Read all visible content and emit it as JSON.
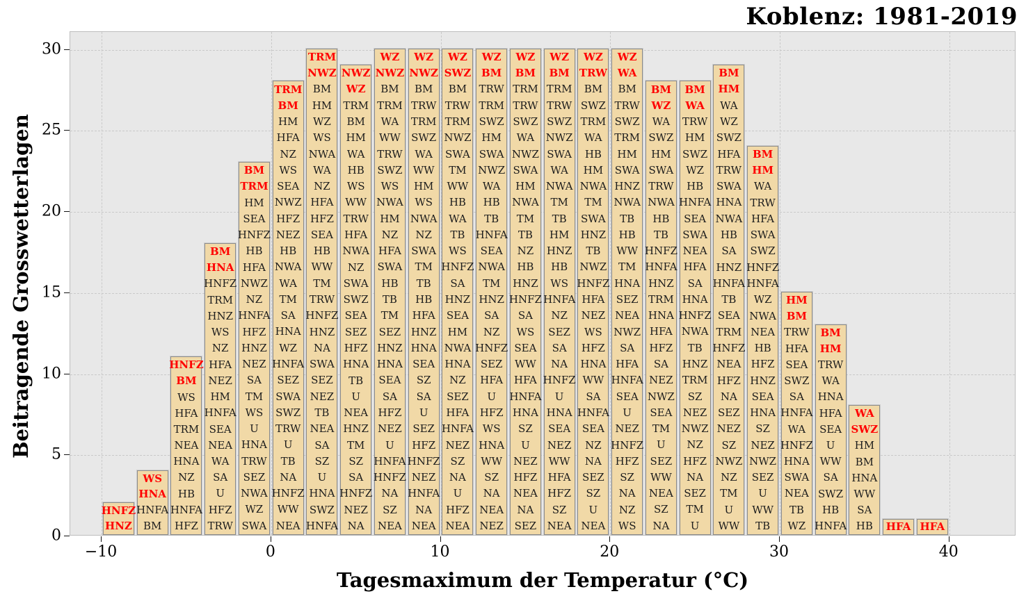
{
  "chart_data": {
    "type": "bar",
    "subtype": "stacked-labeled-cells",
    "title": "Koblenz: 1981-2019",
    "xlabel": "Tagesmaximum der Temperatur (°C)",
    "ylabel": "Beitragende Grosswetterlagen",
    "x_tick_values": [
      -10,
      0,
      10,
      20,
      30,
      40
    ],
    "x_tick_labels": [
      "−10",
      "0",
      "10",
      "20",
      "30",
      "40"
    ],
    "y_ticks": [
      0,
      5,
      10,
      15,
      20,
      25,
      30
    ],
    "xlim": [
      -11.85,
      43.95
    ],
    "ylim": [
      0,
      31.1
    ],
    "grid": "dashed-both-axes",
    "legend": null,
    "bar_width_degC": 1.85,
    "colors": {
      "bar_fill": "#f1d9a7",
      "bar_border": "#8b8b8b",
      "label_text": "#1c1c1c",
      "highlight_text": "#ff0000",
      "plot_background": "#e8e8e8",
      "gridline": "#c9c9c9"
    },
    "bars": [
      {
        "temp": -9,
        "count": 2,
        "red": 2,
        "labels": [
          "HNFZ",
          "HNZ"
        ]
      },
      {
        "temp": -7,
        "count": 4,
        "red": 2,
        "labels": [
          "WS",
          "HNA",
          "HNFA",
          "BM"
        ]
      },
      {
        "temp": -5,
        "count": 11,
        "red": 2,
        "labels": [
          "HNFZ",
          "BM",
          "WS",
          "HFA",
          "TRM",
          "NEA",
          "HNA",
          "NZ",
          "HB",
          "HNFA",
          "HFZ"
        ]
      },
      {
        "temp": -3,
        "count": 18,
        "red": 2,
        "labels": [
          "BM",
          "HNA",
          "HNFZ",
          "TRM",
          "HNZ",
          "WS",
          "NZ",
          "HFA",
          "NEZ",
          "HM",
          "HNFA",
          "SEA",
          "NEA",
          "WA",
          "SA",
          "U",
          "HFZ",
          "TRW"
        ]
      },
      {
        "temp": -1,
        "count": 23,
        "red": 2,
        "labels": [
          "BM",
          "TRM",
          "HM",
          "SEA",
          "HNFZ",
          "HB",
          "HFA",
          "NWZ",
          "NZ",
          "HNFA",
          "HFZ",
          "HNZ",
          "NEZ",
          "SA",
          "TM",
          "WS",
          "U",
          "HNA",
          "TRW",
          "SEZ",
          "NWA",
          "WZ",
          "SWA"
        ]
      },
      {
        "temp": 1,
        "count": 28,
        "red": 2,
        "labels": [
          "TRM",
          "BM",
          "HM",
          "HFA",
          "NZ",
          "WS",
          "SEA",
          "NWZ",
          "HFZ",
          "NEZ",
          "HB",
          "NWA",
          "WA",
          "TM",
          "SA",
          "HNA",
          "WZ",
          "HNFA",
          "SEZ",
          "SWA",
          "SWZ",
          "TRW",
          "U",
          "TB",
          "NA",
          "HNFZ",
          "WW",
          "NEA"
        ]
      },
      {
        "temp": 3,
        "count": 30,
        "red": 2,
        "labels": [
          "TRM",
          "NWZ",
          "BM",
          "HM",
          "WZ",
          "WS",
          "NWA",
          "WA",
          "NZ",
          "HFA",
          "HFZ",
          "SEA",
          "HB",
          "WW",
          "TM",
          "TRW",
          "HNFZ",
          "HNZ",
          "NA",
          "SWA",
          "SEZ",
          "NEZ",
          "TB",
          "NEA",
          "SA",
          "SZ",
          "U",
          "HNA",
          "SWZ",
          "HNFA"
        ]
      },
      {
        "temp": 5,
        "count": 29,
        "red": 2,
        "labels": [
          "NWZ",
          "WZ",
          "TRM",
          "BM",
          "HM",
          "WA",
          "HB",
          "WS",
          "WW",
          "TRW",
          "HFA",
          "NWA",
          "NZ",
          "SWA",
          "SWZ",
          "SEA",
          "SEZ",
          "HFZ",
          "HNA",
          "TB",
          "U",
          "NEA",
          "HNZ",
          "TM",
          "SZ",
          "SA",
          "HNFZ",
          "NEZ",
          "NA"
        ]
      },
      {
        "temp": 7,
        "count": 30,
        "red": 2,
        "labels": [
          "WZ",
          "NWZ",
          "BM",
          "TRM",
          "WA",
          "WW",
          "TRW",
          "SWZ",
          "WS",
          "NWA",
          "HM",
          "NZ",
          "HFA",
          "SWA",
          "HB",
          "TB",
          "TM",
          "SEZ",
          "HNZ",
          "HNA",
          "SEA",
          "SA",
          "HFZ",
          "NEZ",
          "U",
          "HNFA",
          "HNFZ",
          "NA",
          "SZ",
          "NEA"
        ]
      },
      {
        "temp": 9,
        "count": 30,
        "red": 2,
        "labels": [
          "WZ",
          "NWZ",
          "BM",
          "TRW",
          "TRM",
          "SWZ",
          "WA",
          "WW",
          "HM",
          "WS",
          "NWA",
          "NZ",
          "SWA",
          "TM",
          "TB",
          "HB",
          "HFA",
          "HNZ",
          "HNA",
          "SEA",
          "SZ",
          "SA",
          "U",
          "SEZ",
          "HFZ",
          "HNFZ",
          "NEZ",
          "HNFA",
          "NA",
          "NEA"
        ]
      },
      {
        "temp": 11,
        "count": 30,
        "red": 2,
        "labels": [
          "WZ",
          "SWZ",
          "BM",
          "TRW",
          "TRM",
          "NWZ",
          "SWA",
          "TM",
          "WW",
          "HB",
          "WA",
          "TB",
          "WS",
          "HNFZ",
          "SA",
          "HNZ",
          "SEA",
          "HM",
          "NWA",
          "HNA",
          "NZ",
          "SEZ",
          "HFA",
          "HNFA",
          "NEZ",
          "SZ",
          "NA",
          "U",
          "HFZ",
          "NEA"
        ]
      },
      {
        "temp": 13,
        "count": 30,
        "red": 2,
        "labels": [
          "WZ",
          "BM",
          "TRW",
          "TRM",
          "SWZ",
          "HM",
          "SWA",
          "NWZ",
          "WA",
          "HB",
          "TB",
          "HNFA",
          "SEA",
          "NWA",
          "TM",
          "HNZ",
          "SA",
          "NZ",
          "HNFZ",
          "SEZ",
          "HFA",
          "U",
          "HFZ",
          "WS",
          "HNA",
          "WW",
          "SZ",
          "NA",
          "NEA",
          "NEZ"
        ]
      },
      {
        "temp": 15,
        "count": 30,
        "red": 2,
        "labels": [
          "WZ",
          "BM",
          "TRM",
          "TRW",
          "SWZ",
          "WA",
          "NWZ",
          "SWA",
          "HM",
          "NWA",
          "TM",
          "TB",
          "NZ",
          "HB",
          "HNZ",
          "HNFZ",
          "SA",
          "WS",
          "SEA",
          "WW",
          "HFA",
          "HNFA",
          "HNA",
          "SZ",
          "U",
          "NEZ",
          "HFZ",
          "NEA",
          "NA",
          "SEZ"
        ]
      },
      {
        "temp": 17,
        "count": 30,
        "red": 2,
        "labels": [
          "WZ",
          "BM",
          "TRM",
          "TRW",
          "SWZ",
          "NWZ",
          "SWA",
          "WA",
          "NWA",
          "TM",
          "TB",
          "HM",
          "HNZ",
          "HB",
          "WS",
          "HNFA",
          "NZ",
          "SEZ",
          "SA",
          "NA",
          "HNFZ",
          "U",
          "HNA",
          "SEA",
          "NEZ",
          "WW",
          "HFA",
          "HFZ",
          "SZ",
          "NEA"
        ]
      },
      {
        "temp": 19,
        "count": 30,
        "red": 2,
        "labels": [
          "WZ",
          "TRW",
          "BM",
          "SWZ",
          "TRM",
          "WA",
          "HB",
          "HM",
          "NWA",
          "TM",
          "SWA",
          "HNZ",
          "TB",
          "NWZ",
          "HNFZ",
          "HFA",
          "NEZ",
          "WS",
          "HFZ",
          "HNA",
          "WW",
          "SA",
          "HNFA",
          "SEA",
          "NZ",
          "NA",
          "SEZ",
          "SZ",
          "U",
          "NEA"
        ]
      },
      {
        "temp": 21,
        "count": 30,
        "red": 2,
        "labels": [
          "WZ",
          "WA",
          "BM",
          "TRW",
          "SWZ",
          "TRM",
          "HM",
          "SWA",
          "HNZ",
          "NWA",
          "TB",
          "HB",
          "WW",
          "TM",
          "HNA",
          "SEZ",
          "NEA",
          "NWZ",
          "SA",
          "HFA",
          "HNFA",
          "SEA",
          "U",
          "NEZ",
          "HNFZ",
          "HFZ",
          "SZ",
          "NA",
          "NZ",
          "WS"
        ]
      },
      {
        "temp": 23,
        "count": 28,
        "red": 2,
        "labels": [
          "BM",
          "WZ",
          "WA",
          "SWZ",
          "HM",
          "SWA",
          "TRW",
          "NWA",
          "HB",
          "TB",
          "HNFZ",
          "HNFA",
          "HNZ",
          "TRM",
          "HNA",
          "HFA",
          "HFZ",
          "SA",
          "NEZ",
          "NWZ",
          "SEA",
          "TM",
          "U",
          "SEZ",
          "WW",
          "NEA",
          "SZ",
          "NA"
        ]
      },
      {
        "temp": 25,
        "count": 28,
        "red": 2,
        "labels": [
          "BM",
          "WA",
          "TRW",
          "HM",
          "SWZ",
          "WZ",
          "HB",
          "HNFA",
          "SEA",
          "SWA",
          "NEA",
          "HFA",
          "SA",
          "HNA",
          "HNFZ",
          "NWA",
          "TB",
          "HNZ",
          "TRM",
          "SZ",
          "NEZ",
          "NWZ",
          "NZ",
          "HFZ",
          "NA",
          "SEZ",
          "TM",
          "U"
        ]
      },
      {
        "temp": 27,
        "count": 29,
        "red": 2,
        "labels": [
          "BM",
          "HM",
          "WA",
          "WZ",
          "SWZ",
          "HFA",
          "TRW",
          "SWA",
          "HNA",
          "NWA",
          "HB",
          "SA",
          "HNZ",
          "HNFA",
          "TB",
          "SEA",
          "TRM",
          "HNFZ",
          "NEA",
          "HFZ",
          "NA",
          "SEZ",
          "NEZ",
          "SZ",
          "NWZ",
          "NZ",
          "TM",
          "U",
          "WW"
        ]
      },
      {
        "temp": 29,
        "count": 24,
        "red": 2,
        "labels": [
          "BM",
          "HM",
          "WA",
          "TRW",
          "HFA",
          "SWA",
          "SWZ",
          "HNFZ",
          "HNFA",
          "WZ",
          "NWA",
          "NEA",
          "HB",
          "HFZ",
          "HNZ",
          "SEA",
          "HNA",
          "SZ",
          "NEZ",
          "NWZ",
          "SEZ",
          "U",
          "WW",
          "TB"
        ]
      },
      {
        "temp": 31,
        "count": 15,
        "red": 2,
        "labels": [
          "HM",
          "BM",
          "TRW",
          "HFA",
          "SEA",
          "SWZ",
          "SA",
          "HNFA",
          "WA",
          "HNFZ",
          "HNA",
          "SWA",
          "NEA",
          "TB",
          "WZ"
        ]
      },
      {
        "temp": 33,
        "count": 13,
        "red": 2,
        "labels": [
          "BM",
          "HM",
          "TRW",
          "WA",
          "HNA",
          "HFA",
          "SEA",
          "U",
          "WW",
          "SA",
          "SWZ",
          "HB",
          "HNFA"
        ]
      },
      {
        "temp": 35,
        "count": 8,
        "red": 2,
        "labels": [
          "WA",
          "SWZ",
          "HM",
          "BM",
          "HNA",
          "WW",
          "SA",
          "HB"
        ]
      },
      {
        "temp": 37,
        "count": 1,
        "red": 1,
        "labels": [
          "HFA"
        ]
      },
      {
        "temp": 39,
        "count": 1,
        "red": 1,
        "labels": [
          "HFA"
        ]
      }
    ]
  }
}
